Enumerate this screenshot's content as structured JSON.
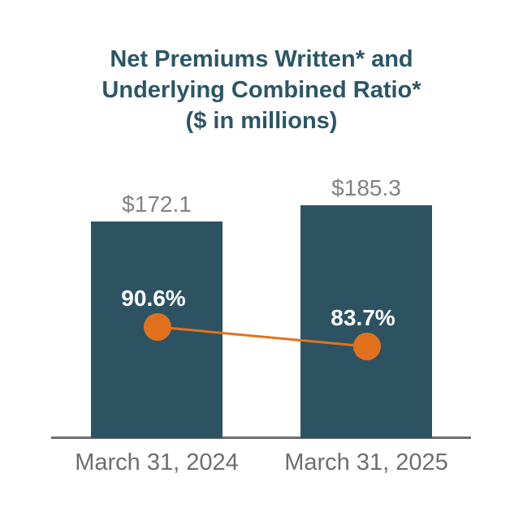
{
  "title": {
    "line1": "Net Premiums Written* and",
    "line2": "Underlying Combined Ratio*",
    "line3": "($ in millions)"
  },
  "chart_data": {
    "type": "bar",
    "combo": "bar + line overlay",
    "title": "Net Premiums Written* and Underlying Combined Ratio* ($ in millions)",
    "categories": [
      "March 31, 2024",
      "March 31, 2025"
    ],
    "series": [
      {
        "name": "Net Premiums Written",
        "type": "bar",
        "unit": "$ millions",
        "values": [
          172.1,
          185.3
        ],
        "data_labels": [
          "$172.1",
          "$185.3"
        ]
      },
      {
        "name": "Underlying Combined Ratio",
        "type": "line",
        "unit": "%",
        "values": [
          90.6,
          83.7
        ],
        "data_labels": [
          "90.6%",
          "83.7%"
        ]
      }
    ],
    "legend": "none",
    "grid": false,
    "y_axis": "hidden; bar heights proportional to value from 0",
    "colors": {
      "background": "#FFFFFF",
      "bar": "#2D5363",
      "line": "#E2711D",
      "marker": "#E2711D",
      "title_text": "#2B5666",
      "bar_label_text": "#808285",
      "category_label_text": "#6D6E71",
      "percent_label_text": "#FFFFFF",
      "axis_line": "#6B6D6E"
    }
  }
}
